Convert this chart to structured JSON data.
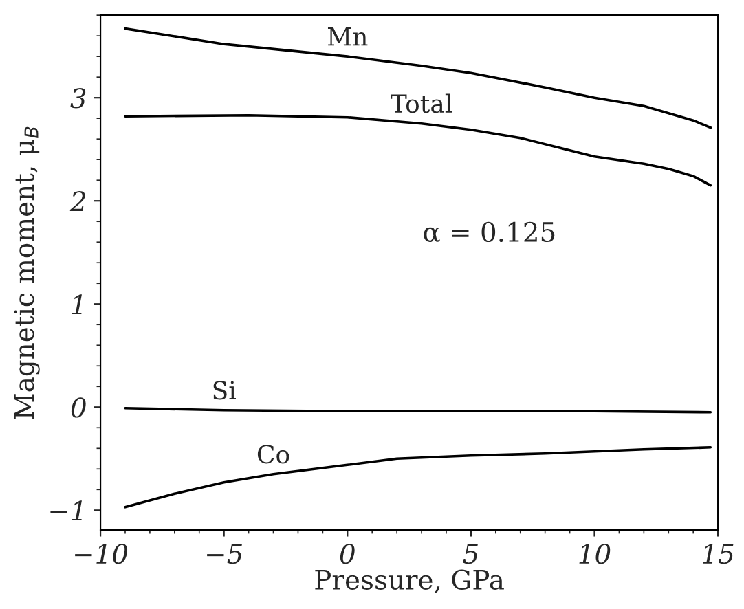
{
  "chart_data": {
    "type": "line",
    "xlabel": "Pressure, GPa",
    "ylabel": "Magnetic moment, μ$_{B}$",
    "xlim": [
      -10,
      15
    ],
    "ylim": [
      -1.19,
      3.8
    ],
    "xticks": [
      {
        "value": -10,
        "label": "−10"
      },
      {
        "value": -5,
        "label": "−5"
      },
      0,
      5,
      10,
      15
    ],
    "yticks": [
      {
        "value": -1,
        "label": "−1"
      },
      0,
      1,
      2,
      3
    ],
    "grid": false,
    "marker": "none",
    "line_style": "solid",
    "annotations": [
      "α = 0.125"
    ],
    "series": [
      {
        "name": "Mn",
        "color": "#000000",
        "x": [
          -9,
          -5,
          0,
          3,
          5,
          8,
          10,
          12,
          13,
          14,
          14.7
        ],
        "values": [
          3.67,
          3.52,
          3.4,
          3.31,
          3.24,
          3.1,
          3.0,
          2.92,
          2.85,
          2.78,
          2.71
        ]
      },
      {
        "name": "Total",
        "color": "#000000",
        "x": [
          -9,
          -4,
          0,
          3,
          5,
          7,
          9,
          10,
          12,
          13,
          14,
          14.7
        ],
        "values": [
          2.82,
          2.83,
          2.81,
          2.75,
          2.69,
          2.61,
          2.49,
          2.43,
          2.36,
          2.31,
          2.24,
          2.15
        ]
      },
      {
        "name": "Si",
        "color": "#000000",
        "x": [
          -9,
          -5,
          0,
          5,
          10,
          14.7
        ],
        "values": [
          -0.01,
          -0.03,
          -0.04,
          -0.04,
          -0.04,
          -0.05
        ]
      },
      {
        "name": "Co",
        "color": "#000000",
        "x": [
          -9,
          -7,
          -5,
          -3,
          -1,
          0,
          2,
          5,
          8,
          10,
          12,
          14.7
        ],
        "values": [
          -0.97,
          -0.84,
          -0.73,
          -0.65,
          -0.59,
          -0.56,
          -0.5,
          -0.47,
          -0.45,
          -0.43,
          -0.41,
          -0.39
        ]
      }
    ]
  }
}
